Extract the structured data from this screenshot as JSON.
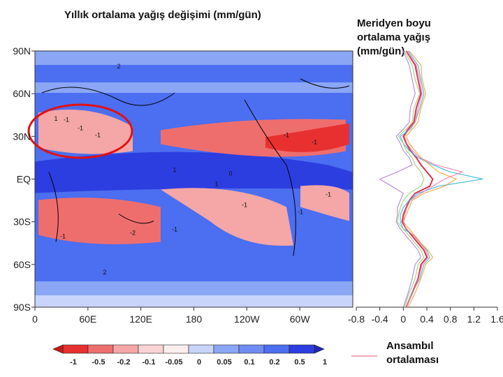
{
  "left_title": "Yıllık ortalama yağış değişimi (mm/gün)",
  "right_title": "Meridyen boyu ortalama yağış (mm/gün)",
  "ensemble_label": "Ansambıl ortalaması",
  "colors": {
    "strong_blue": "#2d3ee0",
    "mid_blue": "#4c6ef0",
    "light_blue": "#8aa6f5",
    "pale_blue": "#c8d4fa",
    "pale_red": "#fad4d4",
    "light_red": "#f5a6a6",
    "mid_red": "#ee6e6e",
    "strong_red": "#e83030",
    "circle": "#e31010",
    "ensemble": "#e03050"
  },
  "chart_data": [
    {
      "type": "heatmap",
      "title": "Yıllık ortalama yağış değişimi (mm/gün)",
      "x_ticks": [
        "0",
        "60E",
        "120E",
        "180",
        "120W",
        "60W"
      ],
      "y_ticks": [
        "90N",
        "60N",
        "30N",
        "EQ",
        "30S",
        "60S",
        "90S"
      ],
      "colorbar": {
        "ticks": [
          "-1",
          "-0.5",
          "-0.2",
          "-0.1",
          "-0.05",
          "0",
          "0.05",
          "0.1",
          "0.2",
          "0.5",
          "1"
        ]
      },
      "contour_labels": [
        "-1",
        "-1",
        "-1",
        "-1",
        "-1",
        "-1",
        "-1",
        "-2",
        "-1",
        "0",
        "1",
        "1",
        "2",
        "1",
        "2",
        "-1",
        "-1"
      ],
      "highlight": "red ellipse over the Mediterranean / Middle East region"
    },
    {
      "type": "line",
      "title": "Meridyen boyu ortalama yağış (mm/gün)",
      "x_ticks": [
        "-0.8",
        "-0.4",
        "0",
        "0.4",
        "0.8",
        "1.2",
        "1.6"
      ],
      "xlim": [
        -0.8,
        1.6
      ],
      "y": [
        90,
        80,
        70,
        60,
        50,
        40,
        35,
        30,
        25,
        20,
        15,
        10,
        5,
        0,
        -5,
        -10,
        -15,
        -20,
        -25,
        -30,
        -35,
        -40,
        -45,
        -50,
        -55,
        -60,
        -70,
        -80,
        -90
      ],
      "series": [
        {
          "name": "Ansambıl ortalaması",
          "values": [
            0.05,
            0.2,
            0.25,
            0.3,
            0.22,
            0.18,
            0.08,
            0.0,
            0.05,
            0.12,
            0.22,
            0.3,
            0.4,
            0.5,
            0.45,
            0.2,
            0.1,
            0.05,
            0.0,
            -0.02,
            0.05,
            0.15,
            0.25,
            0.35,
            0.4,
            0.3,
            0.25,
            0.15,
            0.05
          ]
        },
        {
          "values": [
            0.08,
            0.25,
            0.3,
            0.35,
            0.28,
            0.2,
            0.12,
            -0.05,
            0.0,
            0.1,
            0.25,
            0.5,
            0.8,
            1.35,
            0.6,
            0.25,
            0.1,
            0.0,
            -0.05,
            -0.05,
            0.0,
            0.2,
            0.3,
            0.4,
            0.45,
            0.35,
            0.28,
            0.15,
            0.05
          ]
        },
        {
          "values": [
            0.02,
            0.15,
            0.2,
            0.28,
            0.18,
            0.15,
            0.05,
            -0.08,
            0.0,
            0.05,
            0.15,
            0.2,
            0.3,
            0.35,
            0.3,
            0.1,
            0.0,
            -0.05,
            -0.08,
            -0.1,
            0.0,
            0.1,
            0.2,
            0.3,
            0.35,
            0.25,
            0.2,
            0.1,
            0.02
          ]
        },
        {
          "values": [
            0.1,
            0.3,
            0.32,
            0.38,
            0.3,
            0.25,
            0.15,
            0.05,
            0.1,
            0.2,
            0.3,
            0.45,
            0.6,
            0.9,
            0.7,
            0.35,
            0.15,
            0.1,
            0.05,
            0.0,
            0.1,
            0.2,
            0.3,
            0.42,
            0.5,
            0.38,
            0.3,
            0.2,
            0.08
          ]
        },
        {
          "values": [
            0.0,
            0.1,
            0.15,
            0.2,
            0.12,
            0.1,
            0.0,
            -0.12,
            -0.05,
            0.0,
            0.1,
            0.15,
            -0.1,
            -0.4,
            -0.2,
            0.0,
            -0.05,
            -0.1,
            -0.1,
            -0.12,
            -0.05,
            0.05,
            0.15,
            0.25,
            0.3,
            0.2,
            0.15,
            0.08,
            0.0
          ]
        },
        {
          "values": [
            0.06,
            0.22,
            0.28,
            0.32,
            0.25,
            0.2,
            0.1,
            0.02,
            0.06,
            0.15,
            0.28,
            0.55,
            1.0,
            0.7,
            0.5,
            0.3,
            0.12,
            0.06,
            0.02,
            0.0,
            0.05,
            0.18,
            0.28,
            0.38,
            0.42,
            0.32,
            0.26,
            0.16,
            0.05
          ]
        }
      ]
    }
  ]
}
